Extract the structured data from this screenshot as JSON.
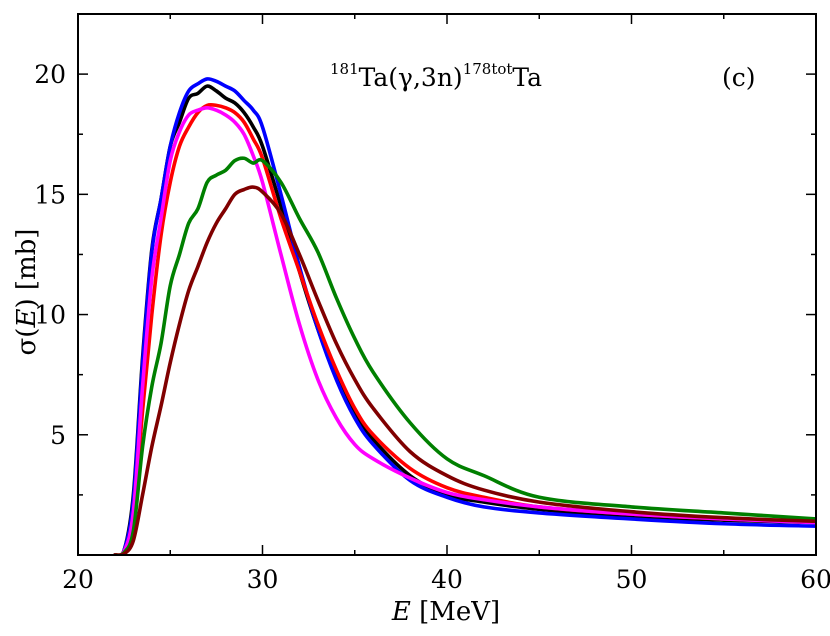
{
  "chart_data": {
    "type": "line",
    "title": {
      "mass_in": "181",
      "reaction": "Ta(γ,3n)",
      "mass_out": "178tot",
      "product": "Ta"
    },
    "panel_label": "(c)",
    "xlabel": {
      "var": "E",
      "unit": " [MeV]"
    },
    "ylabel": {
      "prefix": "σ(",
      "var": "E",
      "suffix": ") [mb]"
    },
    "xlim": [
      20,
      60
    ],
    "ylim": [
      0,
      22.5
    ],
    "xticks": [
      20,
      30,
      40,
      50,
      60
    ],
    "yticks": [
      5,
      10,
      15,
      20
    ],
    "grid": false,
    "legend": "none",
    "series": [
      {
        "color": "#000000",
        "x": [
          22,
          22.5,
          23,
          23.5,
          24,
          24.5,
          25,
          25.5,
          26,
          26.5,
          27,
          27.5,
          28,
          28.5,
          29,
          29.5,
          30,
          31,
          32,
          33,
          34,
          35,
          36,
          38,
          40,
          42,
          45,
          50,
          55,
          60
        ],
        "y": [
          0,
          0.2,
          2.5,
          8.2,
          12.7,
          14.8,
          17.0,
          18.0,
          19.0,
          19.2,
          19.5,
          19.3,
          19.0,
          18.8,
          18.4,
          17.8,
          17.0,
          14.5,
          11.8,
          9.4,
          7.4,
          5.9,
          4.8,
          3.3,
          2.5,
          2.2,
          1.9,
          1.6,
          1.45,
          1.35
        ]
      },
      {
        "color": "#0000ff",
        "x": [
          22,
          22.5,
          23,
          23.5,
          24,
          24.5,
          25,
          25.5,
          26,
          26.5,
          27,
          27.5,
          28,
          28.5,
          29,
          29.5,
          30,
          31,
          32,
          33,
          34,
          35,
          36,
          38,
          40,
          42,
          45,
          50,
          55,
          60
        ],
        "y": [
          0,
          0.2,
          2.3,
          8.0,
          12.6,
          14.8,
          17.0,
          18.4,
          19.3,
          19.6,
          19.8,
          19.7,
          19.5,
          19.3,
          18.9,
          18.5,
          17.8,
          15.0,
          12.0,
          9.4,
          7.3,
          5.7,
          4.6,
          3.1,
          2.4,
          2.0,
          1.75,
          1.5,
          1.3,
          1.2
        ]
      },
      {
        "color": "#ff0000",
        "x": [
          22,
          22.5,
          23,
          23.5,
          24,
          24.5,
          25,
          25.5,
          26,
          26.5,
          27,
          27.5,
          28,
          28.5,
          29,
          29.5,
          30,
          31,
          32,
          33,
          34,
          35,
          36,
          38,
          40,
          42,
          45,
          50,
          55,
          60
        ],
        "y": [
          0,
          0.15,
          1.5,
          6.0,
          10.0,
          13.3,
          15.5,
          17.0,
          17.8,
          18.4,
          18.7,
          18.7,
          18.6,
          18.4,
          18.0,
          17.3,
          16.5,
          14.0,
          11.8,
          9.6,
          7.7,
          6.1,
          5.0,
          3.6,
          2.8,
          2.4,
          2.0,
          1.7,
          1.5,
          1.4
        ]
      },
      {
        "color": "#ff00ff",
        "x": [
          22,
          22.5,
          23,
          23.5,
          24,
          24.5,
          25,
          25.5,
          26,
          26.5,
          27,
          27.5,
          28,
          28.5,
          29,
          29.5,
          30,
          31,
          32,
          33,
          34,
          35,
          36,
          38,
          40,
          42,
          45,
          50,
          55,
          60
        ],
        "y": [
          0,
          0.15,
          1.8,
          7.0,
          11.5,
          14.0,
          16.4,
          17.6,
          18.3,
          18.5,
          18.6,
          18.5,
          18.3,
          18.0,
          17.5,
          16.6,
          15.5,
          12.5,
          9.6,
          7.3,
          5.7,
          4.6,
          4.0,
          3.2,
          2.6,
          2.3,
          2.0,
          1.7,
          1.5,
          1.35
        ]
      },
      {
        "color": "#008000",
        "x": [
          22,
          22.5,
          23,
          23.5,
          24,
          24.5,
          25,
          25.5,
          26,
          26.5,
          27,
          27.5,
          28,
          28.5,
          29,
          29.5,
          30,
          31,
          32,
          33,
          34,
          35,
          36,
          38,
          40,
          42,
          45,
          50,
          55,
          60
        ],
        "y": [
          0,
          0.1,
          1.0,
          4.5,
          7.0,
          8.8,
          11.2,
          12.5,
          13.8,
          14.4,
          15.5,
          15.8,
          16.0,
          16.4,
          16.5,
          16.3,
          16.4,
          15.5,
          14.0,
          12.6,
          10.7,
          9.0,
          7.6,
          5.5,
          4.0,
          3.3,
          2.4,
          2.0,
          1.75,
          1.5
        ]
      },
      {
        "color": "#800000",
        "x": [
          22,
          22.5,
          23,
          23.5,
          24,
          24.5,
          25,
          25.5,
          26,
          26.5,
          27,
          27.5,
          28,
          28.5,
          29,
          29.5,
          30,
          31,
          32,
          33,
          34,
          35,
          36,
          38,
          40,
          42,
          45,
          50,
          55,
          60
        ],
        "y": [
          0,
          0.05,
          0.6,
          2.5,
          4.5,
          6.2,
          8.0,
          9.6,
          11.0,
          12.0,
          13.0,
          13.8,
          14.4,
          15.0,
          15.2,
          15.3,
          15.1,
          14.2,
          12.5,
          10.6,
          8.8,
          7.3,
          6.1,
          4.3,
          3.3,
          2.7,
          2.2,
          1.8,
          1.55,
          1.4
        ]
      }
    ]
  }
}
